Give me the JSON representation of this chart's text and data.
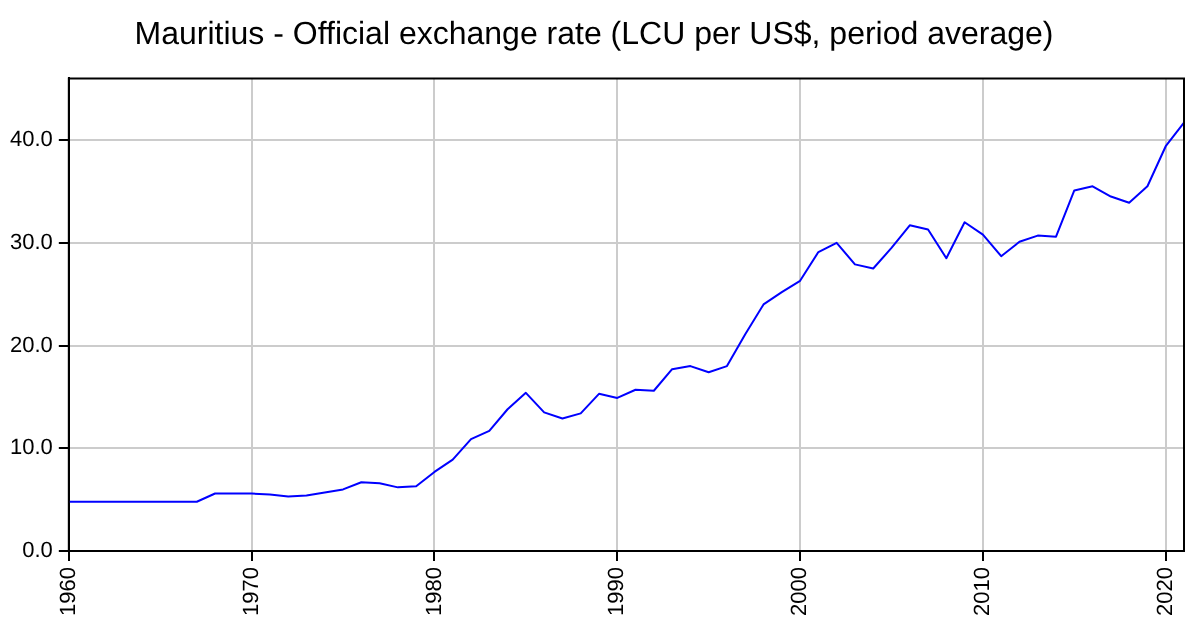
{
  "chart_data": {
    "type": "line",
    "title": "Mauritius - Official exchange rate (LCU per US$, period average)",
    "x": [
      1960,
      1961,
      1962,
      1963,
      1964,
      1965,
      1966,
      1967,
      1968,
      1969,
      1970,
      1971,
      1972,
      1973,
      1974,
      1975,
      1976,
      1977,
      1978,
      1979,
      1980,
      1981,
      1982,
      1983,
      1984,
      1985,
      1986,
      1987,
      1988,
      1989,
      1990,
      1991,
      1992,
      1993,
      1994,
      1995,
      1996,
      1997,
      1998,
      1999,
      2000,
      2001,
      2002,
      2003,
      2004,
      2005,
      2006,
      2007,
      2008,
      2009,
      2010,
      2011,
      2012,
      2013,
      2014,
      2015,
      2016,
      2017,
      2018,
      2019,
      2020,
      2021
    ],
    "series": [
      {
        "color": "#0000ff",
        "values": [
          4.8,
          4.8,
          4.8,
          4.8,
          4.8,
          4.8,
          4.8,
          4.8,
          5.6,
          5.6,
          5.6,
          5.5,
          5.3,
          5.4,
          5.7,
          6.0,
          6.7,
          6.6,
          6.2,
          6.3,
          7.7,
          8.9,
          10.9,
          11.7,
          13.8,
          15.4,
          13.5,
          12.9,
          13.4,
          15.3,
          14.9,
          15.7,
          15.6,
          17.7,
          18.0,
          17.4,
          18.0,
          21.1,
          24.0,
          25.2,
          26.3,
          29.1,
          30.0,
          27.9,
          27.5,
          29.5,
          31.7,
          31.3,
          28.5,
          32.0,
          30.8,
          28.7,
          30.1,
          30.7,
          30.6,
          35.1,
          35.5,
          34.5,
          33.9,
          35.5,
          39.4,
          41.7
        ]
      }
    ],
    "xlim": [
      1960,
      2021
    ],
    "xticks": [
      1960,
      1970,
      1980,
      1990,
      2000,
      2010,
      2020
    ],
    "ylim": [
      0,
      46
    ],
    "yticks": [
      {
        "value": 0,
        "label": "0.0"
      },
      {
        "value": 10,
        "label": "10.0"
      },
      {
        "value": 20,
        "label": "20.0"
      },
      {
        "value": 30,
        "label": "30.0"
      },
      {
        "value": 40,
        "label": "40.0"
      }
    ],
    "grid": true,
    "legend": false,
    "marker": "none",
    "line_style": "solid"
  }
}
